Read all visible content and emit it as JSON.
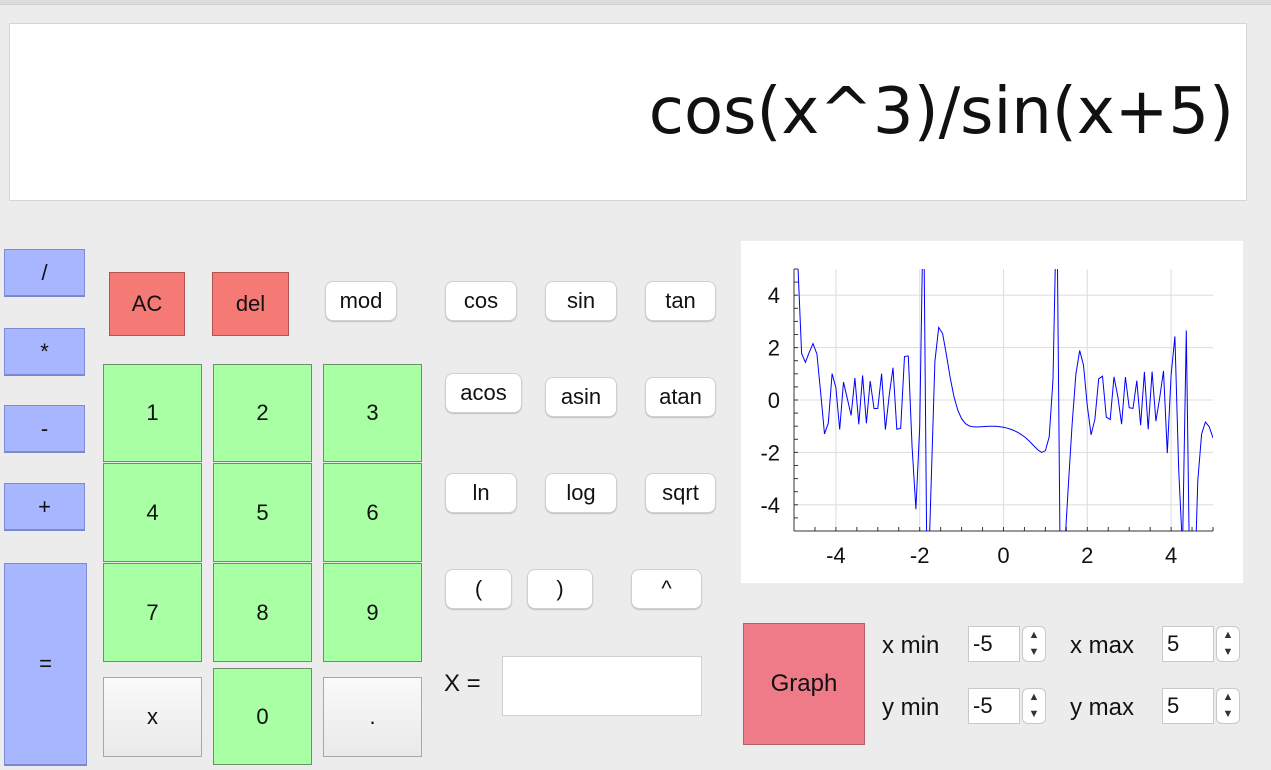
{
  "display": {
    "expression": "cos(x^3)/sin(x+5)"
  },
  "operators": {
    "divide": "/",
    "multiply": "*",
    "minus": "-",
    "plus": "+",
    "equals": "="
  },
  "controls": {
    "clear": "AC",
    "delete": "del"
  },
  "digits": {
    "d1": "1",
    "d2": "2",
    "d3": "3",
    "d4": "4",
    "d5": "5",
    "d6": "6",
    "d7": "7",
    "d8": "8",
    "d9": "9",
    "d0": "0"
  },
  "extra_keys": {
    "x": "x",
    "dot": "."
  },
  "functions": {
    "mod": "mod",
    "cos": "cos",
    "sin": "sin",
    "tan": "tan",
    "acos": "acos",
    "asin": "asin",
    "atan": "atan",
    "ln": "ln",
    "log": "log",
    "sqrt": "sqrt",
    "lparen": "(",
    "rparen": ")",
    "power": "^"
  },
  "x_input": {
    "label": "X =",
    "value": ""
  },
  "graph_controls": {
    "button": "Graph",
    "xmin_label": "x min",
    "xmin": "-5",
    "xmax_label": "x max",
    "xmax": "5",
    "ymin_label": "y min",
    "ymin": "-5",
    "ymax_label": "y max",
    "ymax": "5"
  },
  "colors": {
    "operator": "#a7b6ff",
    "danger": "#f57a76",
    "digit": "#a9ffa4",
    "graph": "#ef7b89",
    "plot_line": "#0000ff"
  },
  "chart_data": {
    "type": "line",
    "title": "",
    "xlabel": "",
    "ylabel": "",
    "xlim": [
      -5,
      5
    ],
    "ylim": [
      -5,
      5
    ],
    "x_ticks": [
      "-4",
      "-2",
      "0",
      "2",
      "4"
    ],
    "y_ticks": [
      "4",
      "2",
      "0",
      "-2",
      "-4"
    ],
    "grid": true,
    "function": "cos(x^3)/sin(x+5)"
  }
}
